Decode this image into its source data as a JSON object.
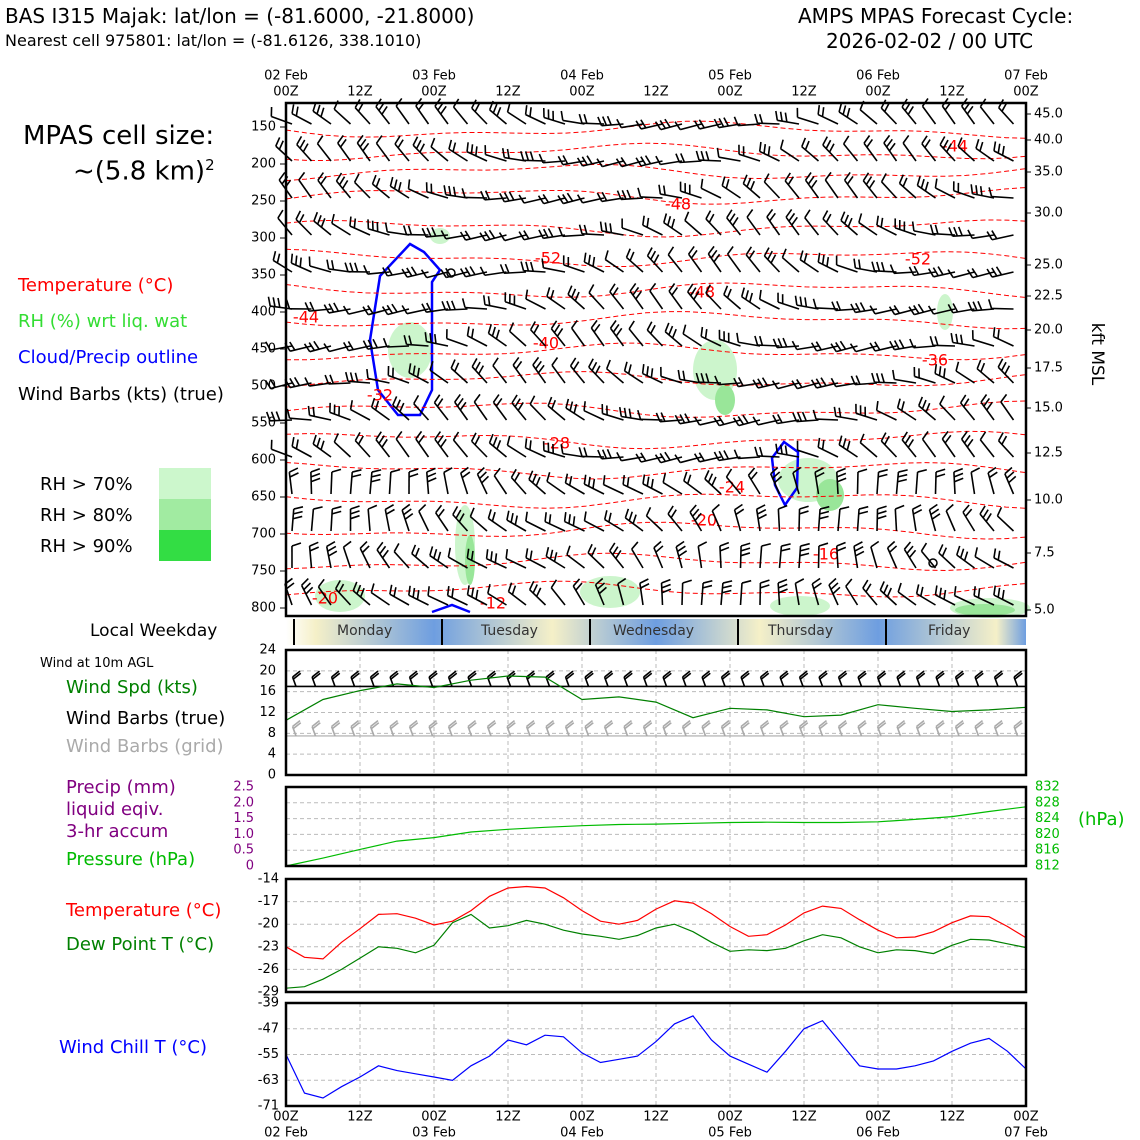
{
  "header": {
    "title_left": "BAS I315 Majak: lat/lon = (-81.6000, -21.8000)",
    "subtitle_left": "Nearest cell 975801: lat/lon = (-81.6126, 338.1010)",
    "title_right_1": "AMPS MPAS Forecast Cycle:",
    "title_right_2": "2026-02-02 / 00 UTC"
  },
  "sidebar": {
    "cell_size_1": "MPAS cell size:",
    "cell_size_2": "~(5.8 km)",
    "cell_size_sup": "2",
    "legend_temp": "Temperature (°C)",
    "legend_rh": "RH (%) wrt liq. wat",
    "legend_cloud": "Cloud/Precip outline",
    "legend_barbs": "Wind Barbs (kts) (true)",
    "rh70": "RH > 70%",
    "rh80": "RH > 80%",
    "rh90": "RH > 90%",
    "local_weekday": "Local Weekday",
    "wind10m": "Wind at 10m AGL",
    "wind_spd": "Wind Spd (kts)",
    "wind_barbs_true": "Wind Barbs (true)",
    "wind_barbs_grid": "Wind Barbs (grid)",
    "precip_1": "Precip (mm)",
    "precip_2": "liquid eqiv.",
    "precip_3": "3-hr accum",
    "pressure": "Pressure (hPa)",
    "temperature": "Temperature (°C)",
    "dewpoint": "Dew Point T (°C)",
    "windchill": "Wind Chill T (°C)"
  },
  "weekdays": [
    "Monday",
    "Tuesday",
    "Wednesday",
    "Thursday",
    "Friday"
  ],
  "colors": {
    "temp": "#ff0000",
    "rh": "#33cc33",
    "cloud": "#0000ff",
    "precip": "#800080",
    "pressure": "#00bb00",
    "dewpoint": "#008000",
    "windchill": "#0000ff",
    "grid_barbs": "#aaaaaa",
    "rh70": "#ccf5cc",
    "rh80": "#99e699",
    "rh90": "#33dd44"
  },
  "chart_data": [
    {
      "type": "line",
      "name": "time-height",
      "x_top_dates": [
        "02 Feb",
        "",
        "03 Feb",
        "",
        "04 Feb",
        "",
        "05 Feb",
        "",
        "06 Feb",
        "",
        "07 Feb"
      ],
      "x_top_hours": [
        "00Z",
        "12Z",
        "00Z",
        "12Z",
        "00Z",
        "12Z",
        "00Z",
        "12Z",
        "00Z",
        "12Z",
        "00Z"
      ],
      "y_pressure_ticks": [
        150,
        200,
        250,
        300,
        350,
        400,
        450,
        500,
        550,
        600,
        650,
        700,
        750,
        800
      ],
      "y_kft_ticks": [
        "45.0",
        "40.0",
        "35.0",
        "30.0",
        "25.0",
        "22.5",
        "20.0",
        "17.5",
        "15.0",
        "12.5",
        "10.0",
        "7.5",
        "5.0"
      ],
      "y_right_label": "kft MSL",
      "temp_labels": [
        "-44",
        "-48",
        "-52",
        "-52",
        "-48",
        "-44",
        "-40",
        "-36",
        "-32",
        "-28",
        "-24",
        "-20",
        "-16",
        "-12",
        "-20"
      ]
    },
    {
      "type": "line",
      "name": "wind",
      "ylim": [
        0,
        24
      ],
      "yticks": [
        "0",
        "4",
        "8",
        "12",
        "16",
        "20",
        "24"
      ],
      "x_hours": [
        0,
        6,
        12,
        18,
        24,
        30,
        36,
        42,
        48,
        54,
        60,
        66,
        72,
        78,
        84,
        90,
        96,
        102,
        108,
        114,
        120
      ],
      "wind_speed": [
        10.5,
        14.5,
        16.2,
        17.5,
        16.8,
        18.2,
        19.0,
        18.8,
        14.5,
        15.0,
        14.0,
        11.0,
        12.8,
        12.5,
        11.2,
        11.5,
        13.5,
        12.8,
        12.2,
        12.5,
        13.0
      ]
    },
    {
      "type": "line",
      "name": "precip-pressure",
      "precip_ylim": [
        0,
        2.5
      ],
      "precip_ticks": [
        "0",
        "0.5",
        "1.0",
        "1.5",
        "2.0",
        "2.5"
      ],
      "pressure_ylim": [
        812,
        832
      ],
      "pressure_ticks": [
        "812",
        "816",
        "820",
        "824",
        "828",
        "832"
      ],
      "pressure_unit": "(hPa)",
      "x_hours": [
        0,
        6,
        12,
        18,
        24,
        30,
        36,
        42,
        48,
        54,
        60,
        66,
        72,
        78,
        84,
        90,
        96,
        102,
        108,
        114,
        120
      ],
      "pressure": [
        812.0,
        814.0,
        816.2,
        818.3,
        819.2,
        820.6,
        821.3,
        821.8,
        822.2,
        822.5,
        822.6,
        822.8,
        823.0,
        823.1,
        823.0,
        823.0,
        823.2,
        823.8,
        824.5,
        825.8,
        827.0
      ]
    },
    {
      "type": "line",
      "name": "temp-dewpoint",
      "ylim": [
        -29,
        -14
      ],
      "yticks": [
        "-29",
        "-26",
        "-23",
        "-20",
        "-17",
        "-14"
      ],
      "x_hours": [
        0,
        3,
        6,
        9,
        12,
        15,
        18,
        21,
        24,
        27,
        30,
        33,
        36,
        39,
        42,
        45,
        48,
        51,
        54,
        57,
        60,
        63,
        66,
        69,
        72,
        75,
        78,
        81,
        84,
        87,
        90,
        93,
        96,
        99,
        102,
        105,
        108,
        111,
        114,
        117,
        120
      ],
      "temperature": [
        -23.0,
        -24.4,
        -24.6,
        -22.4,
        -20.6,
        -18.7,
        -18.6,
        -19.2,
        -20.1,
        -19.6,
        -18.2,
        -16.3,
        -15.2,
        -15.0,
        -15.2,
        -16.5,
        -18.2,
        -19.6,
        -20.0,
        -19.5,
        -18.0,
        -16.9,
        -17.2,
        -18.6,
        -20.3,
        -21.6,
        -21.4,
        -20.1,
        -18.5,
        -17.6,
        -17.9,
        -19.4,
        -20.8,
        -21.8,
        -21.7,
        -21.0,
        -19.8,
        -18.9,
        -19.0,
        -20.3,
        -21.8
      ],
      "dewpoint": [
        -28.5,
        -28.3,
        -27.3,
        -26.0,
        -24.5,
        -23.0,
        -23.2,
        -23.8,
        -22.8,
        -19.8,
        -18.7,
        -20.5,
        -20.2,
        -19.5,
        -20.0,
        -20.8,
        -21.3,
        -21.6,
        -22.0,
        -21.5,
        -20.5,
        -20.0,
        -21.0,
        -22.4,
        -23.6,
        -23.4,
        -23.5,
        -23.2,
        -22.2,
        -21.4,
        -21.8,
        -23.0,
        -23.8,
        -23.4,
        -23.5,
        -23.9,
        -22.8,
        -22.0,
        -22.1,
        -22.6,
        -23.1
      ]
    },
    {
      "type": "line",
      "name": "wind-chill",
      "ylim": [
        -71,
        -39
      ],
      "yticks": [
        "-71",
        "-63",
        "-55",
        "-47",
        "-39"
      ],
      "x_labels_hours": [
        "00Z",
        "12Z",
        "00Z",
        "12Z",
        "00Z",
        "12Z",
        "00Z",
        "12Z",
        "00Z",
        "12Z",
        "00Z"
      ],
      "x_labels_dates": [
        "02 Feb",
        "",
        "03 Feb",
        "",
        "04 Feb",
        "",
        "05 Feb",
        "",
        "06 Feb",
        "",
        "07 Feb"
      ],
      "x_hours": [
        0,
        3,
        6,
        9,
        12,
        15,
        18,
        21,
        24,
        27,
        30,
        33,
        36,
        39,
        42,
        45,
        48,
        51,
        54,
        57,
        60,
        63,
        66,
        69,
        72,
        75,
        78,
        81,
        84,
        87,
        90,
        93,
        96,
        99,
        102,
        105,
        108,
        111,
        114,
        117,
        120
      ],
      "wind_chill": [
        -55,
        -67,
        -68.5,
        -65,
        -62,
        -58.5,
        -60,
        -61,
        -62,
        -63,
        -58.5,
        -55.5,
        -50.5,
        -52,
        -49,
        -49.5,
        -54.5,
        -57.5,
        -56.5,
        -55.5,
        -51,
        -45.5,
        -43,
        -50.5,
        -55.5,
        -58,
        -60.5,
        -54,
        -47,
        -44.5,
        -51.5,
        -58.5,
        -59.5,
        -59.5,
        -58.5,
        -57,
        -54,
        -51.5,
        -50,
        -54,
        -59.5
      ]
    }
  ]
}
